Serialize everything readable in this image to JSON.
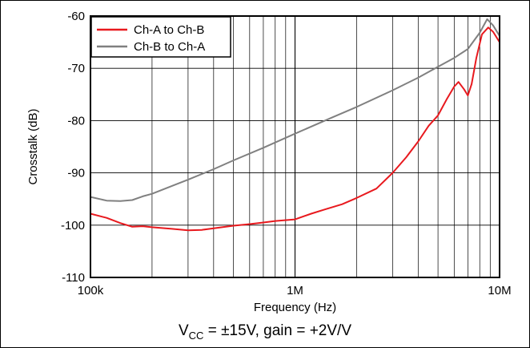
{
  "chart_data": {
    "type": "line",
    "xlabel": "Frequency (Hz)",
    "ylabel": "Crosstalk (dB)",
    "xscale": "log",
    "xlim": [
      100000,
      10000000
    ],
    "ylim": [
      -110,
      -60
    ],
    "x_ticks": [
      100000,
      1000000,
      10000000
    ],
    "x_tick_labels": [
      "100k",
      "1M",
      "10M"
    ],
    "y_ticks": [
      -60,
      -70,
      -80,
      -90,
      -100,
      -110
    ],
    "y_tick_labels": [
      "-60",
      "-70",
      "-80",
      "-90",
      "-100",
      "-110"
    ],
    "grid": true,
    "legend_position": "top-left",
    "series": [
      {
        "name": "Ch-A to Ch-B",
        "color": "#e8191e",
        "points": [
          [
            100000,
            -97.8
          ],
          [
            120000,
            -98.6
          ],
          [
            140000,
            -99.6
          ],
          [
            160000,
            -100.3
          ],
          [
            180000,
            -100.2
          ],
          [
            200000,
            -100.4
          ],
          [
            250000,
            -100.7
          ],
          [
            300000,
            -101.0
          ],
          [
            350000,
            -100.9
          ],
          [
            400000,
            -100.6
          ],
          [
            500000,
            -100.1
          ],
          [
            600000,
            -99.8
          ],
          [
            700000,
            -99.5
          ],
          [
            800000,
            -99.2
          ],
          [
            1000000,
            -98.9
          ],
          [
            1200000,
            -97.8
          ],
          [
            1400000,
            -97.0
          ],
          [
            1700000,
            -96.0
          ],
          [
            2000000,
            -94.8
          ],
          [
            2500000,
            -93.0
          ],
          [
            3000000,
            -90.0
          ],
          [
            3500000,
            -87.0
          ],
          [
            4000000,
            -84.0
          ],
          [
            4500000,
            -81.0
          ],
          [
            5000000,
            -79.0
          ],
          [
            5500000,
            -76.0
          ],
          [
            6000000,
            -73.5
          ],
          [
            6300000,
            -72.6
          ],
          [
            6700000,
            -74.0
          ],
          [
            7000000,
            -75.2
          ],
          [
            7300000,
            -73.0
          ],
          [
            7700000,
            -68.0
          ],
          [
            8200000,
            -63.5
          ],
          [
            8800000,
            -62.2
          ],
          [
            9300000,
            -63.0
          ],
          [
            10000000,
            -65.0
          ]
        ]
      },
      {
        "name": "Ch-B to Ch-A",
        "color": "#808080",
        "points": [
          [
            100000,
            -94.6
          ],
          [
            120000,
            -95.3
          ],
          [
            140000,
            -95.4
          ],
          [
            160000,
            -95.2
          ],
          [
            180000,
            -94.5
          ],
          [
            200000,
            -94.0
          ],
          [
            250000,
            -92.5
          ],
          [
            300000,
            -91.3
          ],
          [
            400000,
            -89.3
          ],
          [
            500000,
            -87.6
          ],
          [
            700000,
            -85.2
          ],
          [
            1000000,
            -82.5
          ],
          [
            1500000,
            -79.5
          ],
          [
            2000000,
            -77.4
          ],
          [
            3000000,
            -74.2
          ],
          [
            4000000,
            -71.8
          ],
          [
            5000000,
            -69.7
          ],
          [
            6000000,
            -68.0
          ],
          [
            7000000,
            -66.3
          ],
          [
            8000000,
            -63.2
          ],
          [
            8700000,
            -60.6
          ],
          [
            9300000,
            -61.8
          ],
          [
            10000000,
            -63.8
          ]
        ]
      }
    ],
    "annotation": {
      "base": "V",
      "sub": "CC",
      "rest": " = ±15V, gain = +2V/V"
    }
  }
}
